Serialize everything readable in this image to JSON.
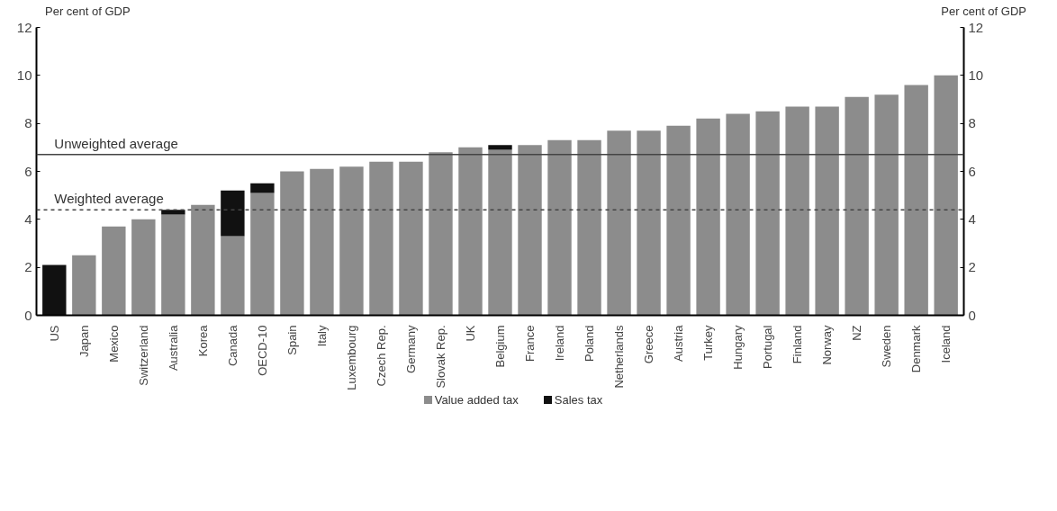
{
  "chart_data": {
    "type": "bar",
    "stacked": true,
    "ylabel": "Per cent of GDP",
    "y2label": "Per cent of GDP",
    "categories": [
      "US",
      "Japan",
      "Mexico",
      "Switzerland",
      "Australia",
      "Korea",
      "Canada",
      "OECD-10",
      "Spain",
      "Italy",
      "Luxembourg",
      "Czech Rep.",
      "Germany",
      "Slovak Rep.",
      "UK",
      "Belgium",
      "France",
      "Ireland",
      "Poland",
      "Netherlands",
      "Greece",
      "Austria",
      "Turkey",
      "Hungary",
      "Portugal",
      "Finland",
      "Norway",
      "NZ",
      "Sweden",
      "Denmark",
      "Iceland"
    ],
    "series": [
      {
        "name": "Value added tax",
        "color": "#8c8c8c",
        "values": [
          null,
          2.5,
          3.7,
          4.0,
          4.2,
          4.6,
          3.3,
          5.1,
          6.0,
          6.1,
          6.2,
          6.4,
          6.4,
          6.8,
          7.0,
          6.9,
          7.1,
          7.3,
          7.3,
          7.7,
          7.7,
          7.9,
          8.2,
          8.4,
          8.5,
          8.7,
          8.7,
          9.1,
          9.2,
          9.6,
          10.0
        ]
      },
      {
        "name": "Sales tax",
        "color": "#111111",
        "values": [
          2.1,
          null,
          null,
          null,
          0.2,
          null,
          1.9,
          0.4,
          null,
          null,
          null,
          null,
          null,
          null,
          null,
          0.2,
          null,
          null,
          null,
          null,
          null,
          null,
          null,
          null,
          null,
          null,
          null,
          null,
          null,
          null,
          null
        ]
      }
    ],
    "ylim": [
      0,
      12
    ],
    "yticks": [
      0,
      2,
      4,
      6,
      8,
      10,
      12
    ],
    "y2lim": [
      0,
      12
    ],
    "y2ticks": [
      0,
      2,
      4,
      6,
      8,
      10,
      12
    ],
    "ref_lines": [
      {
        "axis": "y",
        "value": 6.7,
        "label": "Unweighted average",
        "color": "#444444",
        "line_style": "solid"
      },
      {
        "axis": "y",
        "value": 4.4,
        "label": "Weighted average",
        "color": "#444444",
        "line_style": "dashed"
      }
    ],
    "grid": false,
    "legend": "bottom"
  }
}
